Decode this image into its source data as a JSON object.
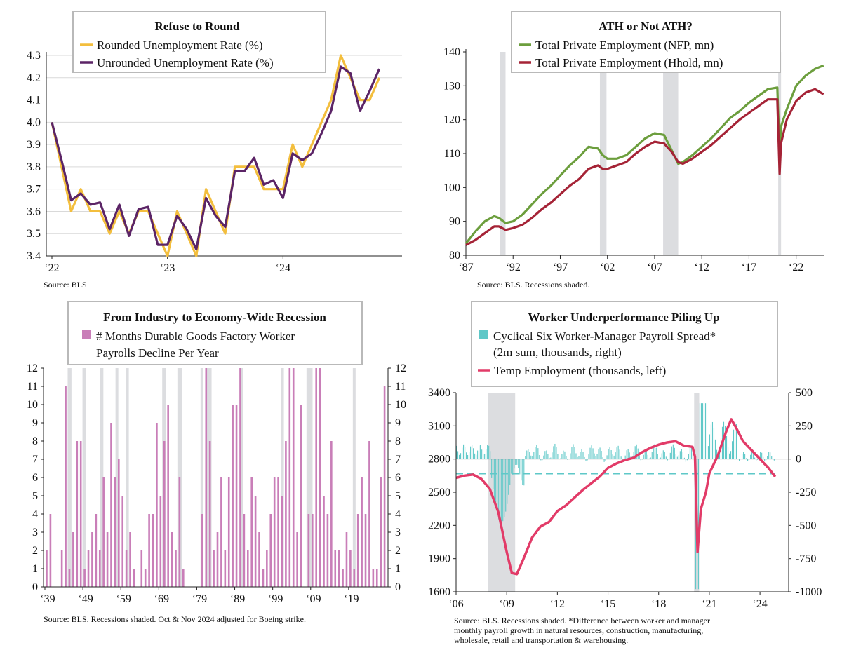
{
  "chart_data": [
    {
      "type": "line",
      "title": "Refuse to Round",
      "source": "Source: BLS",
      "x_tick_labels": [
        "‘22",
        "‘23",
        "‘24"
      ],
      "y_tick_labels": [
        "3.4",
        "3.5",
        "3.6",
        "3.7",
        "3.8",
        "3.9",
        "4.0",
        "4.1",
        "4.2",
        "4.3"
      ],
      "ylim": [
        3.4,
        4.3
      ],
      "grid": "horizontal",
      "legend_position": "top-center",
      "x_start": "2022-01",
      "series": [
        {
          "name": "Rounded Unemployment Rate (%)",
          "color": "#f3be3d",
          "values": [
            4.0,
            3.8,
            3.6,
            3.7,
            3.6,
            3.6,
            3.5,
            3.6,
            3.5,
            3.6,
            3.6,
            3.5,
            3.4,
            3.6,
            3.5,
            3.4,
            3.7,
            3.6,
            3.5,
            3.8,
            3.8,
            3.8,
            3.7,
            3.7,
            3.7,
            3.9,
            3.8,
            3.9,
            4.0,
            4.1,
            4.3,
            4.2,
            4.1,
            4.1,
            4.2
          ]
        },
        {
          "name": "Unrounded Unemployment Rate (%)",
          "color": "#5b2466",
          "values": [
            4.0,
            3.83,
            3.65,
            3.68,
            3.63,
            3.64,
            3.52,
            3.63,
            3.49,
            3.61,
            3.62,
            3.45,
            3.45,
            3.58,
            3.52,
            3.43,
            3.66,
            3.58,
            3.53,
            3.78,
            3.78,
            3.84,
            3.72,
            3.74,
            3.66,
            3.86,
            3.83,
            3.86,
            3.95,
            4.05,
            4.25,
            4.22,
            4.05,
            4.14,
            4.24
          ]
        }
      ]
    },
    {
      "type": "line",
      "title": "ATH or Not ATH?",
      "source": "Source: BLS. Recessions shaded.",
      "x_tick_labels": [
        "‘87",
        "‘92",
        "‘97",
        "‘02",
        "‘07",
        "‘12",
        "‘17",
        "‘22"
      ],
      "y_tick_labels": [
        "80",
        "90",
        "100",
        "110",
        "120",
        "130",
        "140"
      ],
      "ylim": [
        80,
        140
      ],
      "xlim": [
        1987,
        2025
      ],
      "recessions": [
        [
          1990.6,
          1991.2
        ],
        [
          2001.2,
          2001.9
        ],
        [
          2007.9,
          2009.5
        ],
        [
          2020.1,
          2020.4
        ]
      ],
      "legend_position": "top-center",
      "series": [
        {
          "name": "Total Private Employment (NFP, mn)",
          "color": "#6c9e3d",
          "x": [
            1987,
            1988,
            1989,
            1990,
            1990.5,
            1991.2,
            1992,
            1993,
            1994,
            1995,
            1996,
            1997,
            1998,
            1999,
            2000,
            2001,
            2001.5,
            2002,
            2003,
            2004,
            2005,
            2006,
            2007,
            2008,
            2008.8,
            2009.5,
            2010,
            2011,
            2012,
            2013,
            2014,
            2015,
            2016,
            2017,
            2018,
            2019,
            2020.0,
            2020.25,
            2020.4,
            2021,
            2022,
            2023,
            2024,
            2024.9
          ],
          "y": [
            83.5,
            87,
            90,
            91.5,
            91,
            89.5,
            90,
            92,
            95,
            98,
            100.5,
            103.5,
            106.5,
            109,
            112,
            111.5,
            109.5,
            108.5,
            108.5,
            109.5,
            112,
            114.5,
            116,
            115.5,
            111,
            107,
            107.5,
            109.5,
            112,
            114.5,
            117.5,
            120.5,
            122.5,
            125,
            127,
            129,
            129.5,
            110,
            118,
            123,
            130,
            133,
            135,
            136
          ]
        },
        {
          "name": "Total Private Employment (Hhold, mn)",
          "color": "#a52336",
          "x": [
            1987,
            1988,
            1989,
            1990,
            1990.5,
            1991.2,
            1992,
            1993,
            1994,
            1995,
            1996,
            1997,
            1998,
            1999,
            2000,
            2001,
            2001.5,
            2002,
            2003,
            2004,
            2005,
            2006,
            2007,
            2008,
            2008.8,
            2009.5,
            2010,
            2011,
            2012,
            2013,
            2014,
            2015,
            2016,
            2017,
            2018,
            2019,
            2020.0,
            2020.25,
            2020.4,
            2021,
            2022,
            2023,
            2024,
            2024.9
          ],
          "y": [
            83,
            84.5,
            86.5,
            88.5,
            88.5,
            87.5,
            88,
            89,
            91,
            93.5,
            95.5,
            98,
            100.5,
            102.5,
            105.5,
            106.5,
            105.5,
            105.5,
            106.5,
            107.5,
            110,
            112,
            113.5,
            113,
            110.5,
            107.5,
            107,
            108.5,
            110.5,
            112.5,
            115,
            117.5,
            120,
            122,
            124,
            126,
            126,
            104,
            113,
            120,
            125.5,
            128,
            129,
            127.5
          ]
        }
      ]
    },
    {
      "type": "bar",
      "title": "From Industry to Economy-Wide Recession",
      "source": "Source: BLS. Recessions shaded. Oct & Nov 2024 adjusted for Boeing strike.",
      "x_tick_labels": [
        "‘39",
        "‘49",
        "‘59",
        "‘69",
        "‘79",
        "‘89",
        "‘99",
        "‘09",
        "‘19"
      ],
      "y_tick_labels": [
        "0",
        "1",
        "2",
        "3",
        "4",
        "5",
        "6",
        "7",
        "8",
        "9",
        "10",
        "11",
        "12"
      ],
      "ylim": [
        0,
        12
      ],
      "axes": "left and right",
      "years_first": 1939,
      "recessions": [
        [
          1945.0,
          1946.0
        ],
        [
          1948.9,
          1949.8
        ],
        [
          1953.5,
          1954.4
        ],
        [
          1957.6,
          1958.3
        ],
        [
          1960.3,
          1961.1
        ],
        [
          1969.9,
          1970.9
        ],
        [
          1973.9,
          1975.2
        ],
        [
          1980.0,
          1980.5
        ],
        [
          1981.5,
          1982.9
        ],
        [
          1990.5,
          1991.2
        ],
        [
          2001.2,
          2001.9
        ],
        [
          2007.9,
          2009.5
        ],
        [
          2020.1,
          2020.4
        ]
      ],
      "series": [
        {
          "name": "# Months Durable Goods Factory Worker Payrolls Decline Per Year",
          "color": "#c97eb8",
          "values": [
            2,
            4,
            0,
            0,
            2,
            11,
            1,
            3,
            8,
            8,
            1,
            2,
            3,
            4,
            2,
            6,
            3,
            9,
            6,
            7,
            5,
            2,
            3,
            1,
            0,
            2,
            1,
            4,
            4,
            9,
            5,
            8,
            10,
            3,
            2,
            6,
            1,
            0,
            0,
            0,
            0,
            4,
            12,
            8,
            2,
            3,
            6,
            2,
            6,
            10,
            10,
            12,
            4,
            2,
            6,
            5,
            3,
            1,
            2,
            4,
            6,
            6,
            5,
            8,
            12,
            12,
            3,
            10,
            0,
            4,
            4,
            12,
            12,
            5,
            4,
            8,
            2,
            2,
            1,
            3,
            2,
            1,
            4,
            6,
            4,
            8,
            1,
            1,
            6,
            11
          ]
        }
      ]
    },
    {
      "type": "line",
      "title": "Worker Underperformance Piling Up",
      "source": "Source: BLS. Recessions shaded. *Difference between worker and manager monthly payroll growth in natural resources, construction, manufacturing, wholesale, retail and transportation & warehousing.",
      "x_tick_labels": [
        "‘06",
        "‘09",
        "‘12",
        "‘15",
        "‘18",
        "‘21",
        "‘24"
      ],
      "y_left_tick_labels": [
        "1600",
        "1900",
        "2200",
        "2500",
        "2800",
        "3100",
        "3400"
      ],
      "y_right_tick_labels": [
        "-1000",
        "-750",
        "-500",
        "-250",
        "0",
        "250",
        "500"
      ],
      "ylim_left": [
        1600,
        3400
      ],
      "ylim_right": [
        -1000,
        500
      ],
      "xlim": [
        2006,
        2025.7
      ],
      "recessions": [
        [
          2007.9,
          2009.5
        ],
        [
          2020.1,
          2020.4
        ]
      ],
      "reference_line_right": -110,
      "series": [
        {
          "name": "Cyclical Six Worker-Manager Payroll Spread* (2m sum, thousands, right)",
          "color": "#5fc8c8",
          "kind": "bar",
          "axis": "right"
        },
        {
          "name": "Temp Employment (thousands, left)",
          "color": "#e23b68",
          "kind": "line",
          "axis": "left",
          "x": [
            2006,
            2006.5,
            2007,
            2007.5,
            2008,
            2008.5,
            2009,
            2009.3,
            2009.6,
            2010,
            2010.5,
            2011,
            2011.5,
            2012,
            2012.5,
            2013,
            2013.5,
            2014,
            2014.5,
            2015,
            2015.5,
            2016,
            2016.5,
            2017,
            2017.5,
            2018,
            2018.5,
            2019,
            2019.5,
            2020.0,
            2020.15,
            2020.3,
            2020.5,
            2020.8,
            2021,
            2021.5,
            2022,
            2022.3,
            2022.6,
            2023,
            2023.5,
            2024,
            2024.5,
            2024.9
          ],
          "y": [
            2630,
            2650,
            2660,
            2620,
            2530,
            2320,
            1960,
            1770,
            1760,
            1900,
            2090,
            2190,
            2230,
            2330,
            2380,
            2450,
            2520,
            2580,
            2640,
            2720,
            2760,
            2790,
            2810,
            2860,
            2900,
            2930,
            2950,
            2960,
            2920,
            2910,
            2820,
            1960,
            2350,
            2500,
            2670,
            2830,
            3050,
            3160,
            3080,
            2960,
            2880,
            2800,
            2720,
            2640
          ]
        }
      ]
    }
  ]
}
